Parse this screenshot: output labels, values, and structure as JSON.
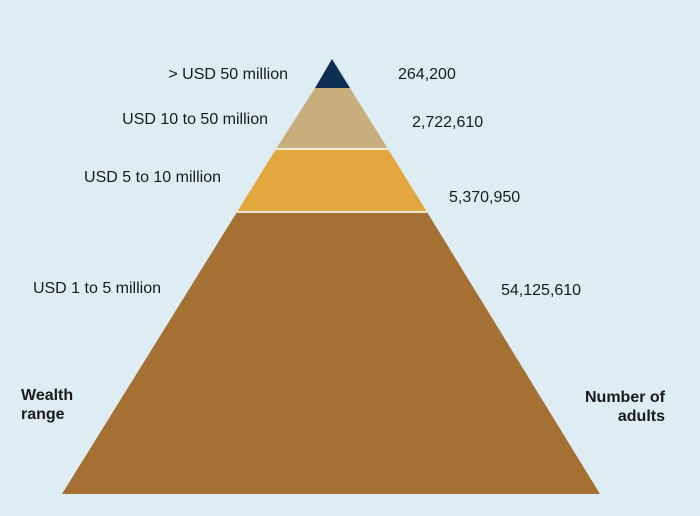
{
  "axis_headers": {
    "left": [
      "Wealth",
      "range"
    ],
    "right": [
      "Number of",
      "adults"
    ]
  },
  "tiers": [
    {
      "range": "> USD 50 million",
      "adults": "264,200",
      "color": "#0f2f52"
    },
    {
      "range": "USD 10 to 50 million",
      "adults": "2,722,610",
      "color": "#c9ae7d"
    },
    {
      "range": "USD 5 to 10 million",
      "adults": "5,370,950",
      "color": "#e2a83f"
    },
    {
      "range": "USD 1 to 5 million",
      "adults": "54,125,610",
      "color": "#a57034"
    }
  ],
  "colors": {
    "background": "#deedf4",
    "separator": "#ffffff"
  }
}
